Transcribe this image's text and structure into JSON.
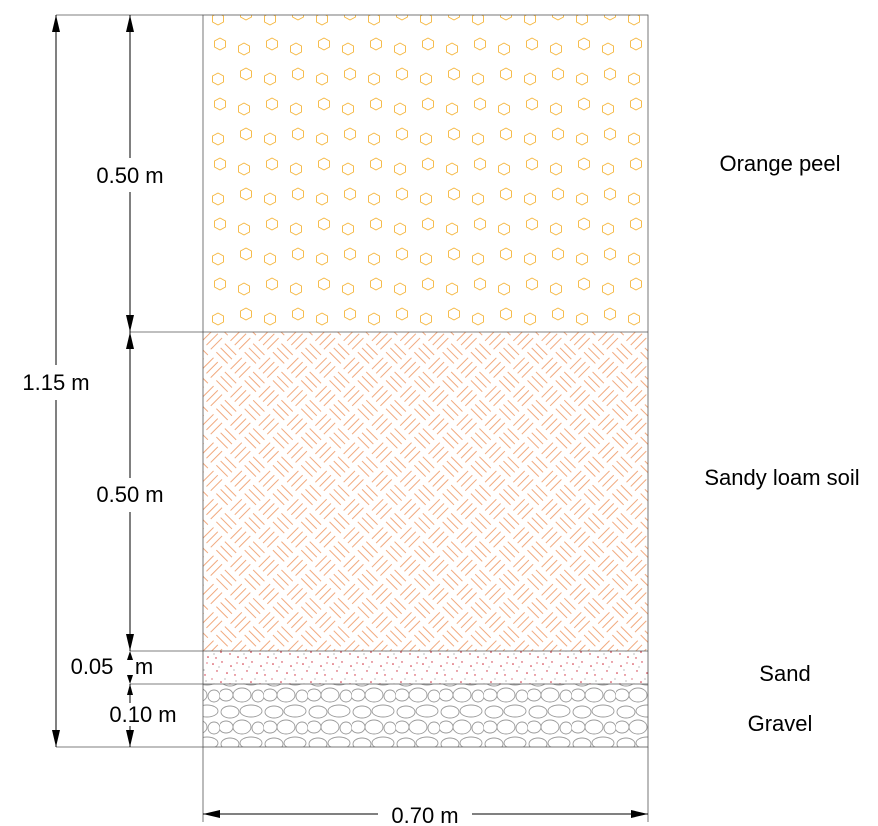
{
  "layers": [
    {
      "name": "Orange peel",
      "thickness": "0.50 m",
      "pattern": "hexagon",
      "color": "#f5b63c"
    },
    {
      "name": "Sandy loam soil",
      "thickness": "0.50 m",
      "pattern": "herringbone",
      "color": "#f0a070"
    },
    {
      "name": "Sand",
      "thickness_a": "0.05",
      "thickness_b": "m",
      "pattern": "dots",
      "color": "#cc2233"
    },
    {
      "name": "Gravel",
      "thickness": "0.10 m",
      "pattern": "stones",
      "color": "#9a9a9a"
    }
  ],
  "total_depth": "1.15 m",
  "width": "0.70 m"
}
